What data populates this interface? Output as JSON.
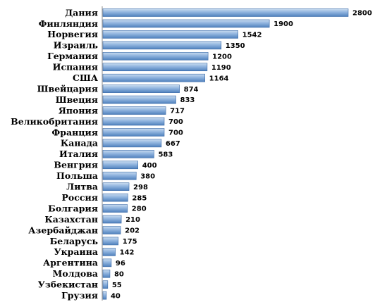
{
  "chart_data": {
    "type": "bar",
    "orientation": "horizontal",
    "categories": [
      "Дания",
      "Финляндия",
      "Норвегия",
      "Израиль",
      "Германия",
      "Испания",
      "США",
      "Швейцария",
      "Швеция",
      "Япония",
      "Великобритания",
      "Франция",
      "Канада",
      "Италия",
      "Венгрия",
      "Польша",
      "Литва",
      "Россия",
      "Болгария",
      "Казахстан",
      "Азербайджан",
      "Беларусь",
      "Украина",
      "Аргентина",
      "Молдова",
      "Узбекистан",
      "Грузия"
    ],
    "values": [
      2800,
      1900,
      1542,
      1350,
      1200,
      1190,
      1164,
      874,
      833,
      717,
      700,
      700,
      667,
      583,
      400,
      380,
      298,
      285,
      280,
      210,
      202,
      175,
      142,
      96,
      80,
      55,
      40
    ],
    "value_labels": [
      "2800",
      "1900",
      "1542",
      "1350",
      "1200",
      "1190",
      "1164",
      "874",
      "833",
      "717",
      "700",
      "700",
      "667",
      "583",
      "400",
      "380",
      "298",
      "285",
      "280",
      "210",
      "202",
      "175",
      "142",
      "96",
      "80",
      "55",
      "40"
    ],
    "xlim": [
      0,
      2800
    ],
    "grid": false,
    "legend": "none",
    "colors": {
      "bar_light": "#c9dcf0",
      "bar_mid": "#8fb3de",
      "bar_dark": "#4f81bd",
      "bar_edge": "#3a6aa8",
      "axis": "#8c8c8c"
    }
  }
}
